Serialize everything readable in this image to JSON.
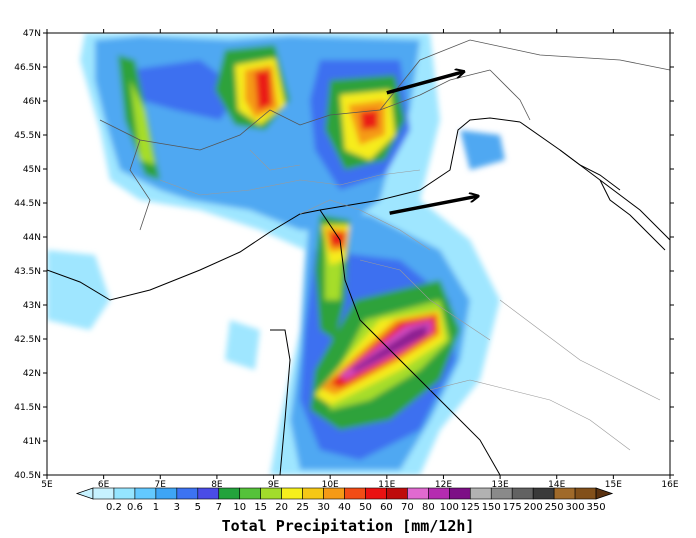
{
  "map": {
    "lat_labels": [
      "47N",
      "46.5N",
      "46N",
      "45.5N",
      "45N",
      "44.5N",
      "44N",
      "43.5N",
      "43N",
      "42.5N",
      "42N",
      "41.5N",
      "41N",
      "40.5N"
    ],
    "lon_labels": [
      "5E",
      "6E",
      "7E",
      "8E",
      "9E",
      "10E",
      "11E",
      "12E",
      "13E",
      "14E",
      "15E",
      "16E"
    ],
    "lat_range": [
      40.5,
      47
    ],
    "lon_range": [
      5,
      16
    ],
    "arrows": [
      {
        "from": [
          11.0,
          46.12
        ],
        "to": [
          12.35,
          46.43
        ]
      },
      {
        "from": [
          11.05,
          44.35
        ],
        "to": [
          12.6,
          44.6
        ]
      }
    ]
  },
  "colorbar": {
    "title": "Total Precipitation [mm/12h]",
    "levels": [
      "0.2",
      "0.6",
      "1",
      "3",
      "5",
      "7",
      "10",
      "15",
      "20",
      "25",
      "30",
      "40",
      "50",
      "60",
      "70",
      "80",
      "100",
      "125",
      "150",
      "175",
      "200",
      "250",
      "300",
      "350"
    ],
    "colors": [
      "#c7f2ff",
      "#95e5ff",
      "#63c9ff",
      "#3ea5f5",
      "#3c73f2",
      "#4a4ce7",
      "#23a33c",
      "#55c23a",
      "#a2dc2b",
      "#f6f01c",
      "#f5c816",
      "#f59a16",
      "#f24c16",
      "#ea1212",
      "#be0b0b",
      "#e06ad0",
      "#b52bb0",
      "#7d0f86",
      "#b2b2b2",
      "#8a8a8a",
      "#626262",
      "#3a3a3a",
      "#a06a2a",
      "#82501a",
      "#5a3210"
    ]
  }
}
